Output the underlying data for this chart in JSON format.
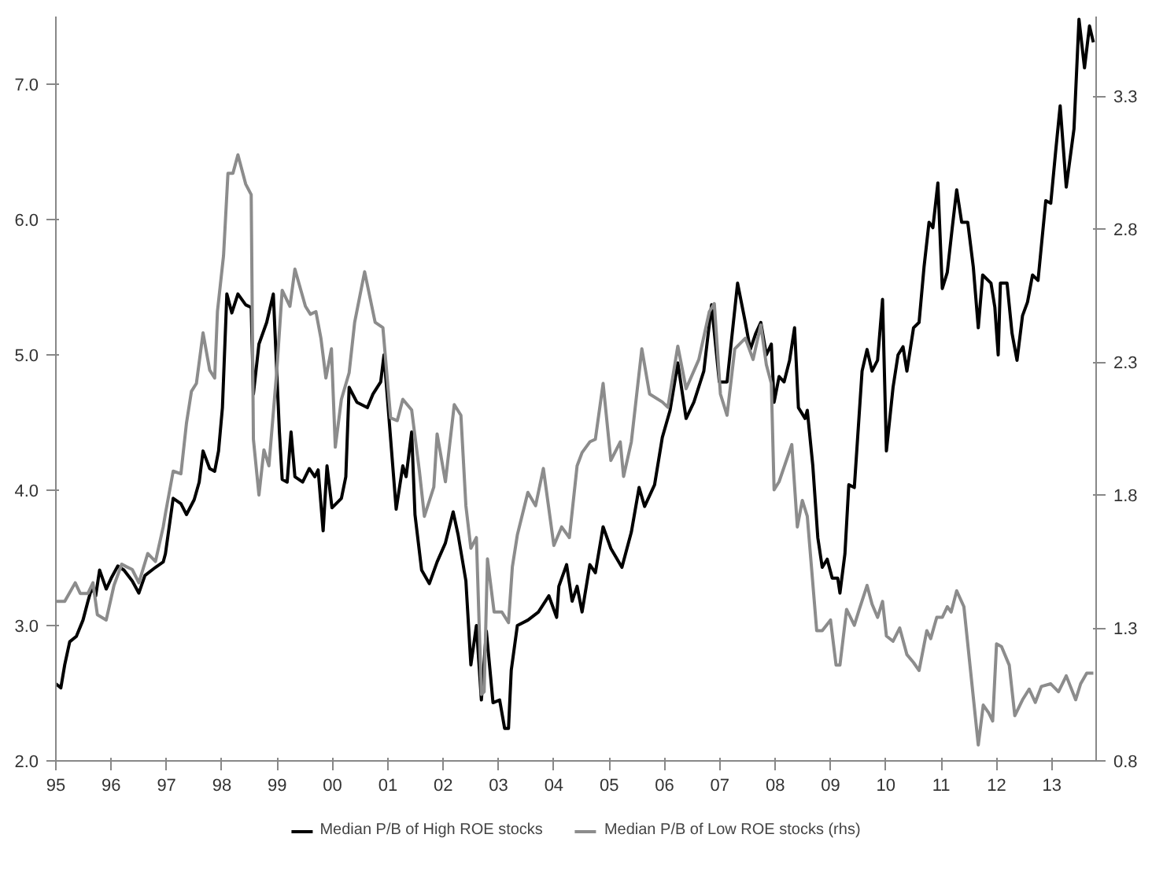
{
  "chart_data": {
    "type": "line",
    "xlim": [
      1995,
      2013.8
    ],
    "xticks": [
      {
        "value": 1995,
        "label": "95"
      },
      {
        "value": 1996,
        "label": "96"
      },
      {
        "value": 1997,
        "label": "97"
      },
      {
        "value": 1998,
        "label": "98"
      },
      {
        "value": 1999,
        "label": "99"
      },
      {
        "value": 2000,
        "label": "00"
      },
      {
        "value": 2001,
        "label": "01"
      },
      {
        "value": 2002,
        "label": "02"
      },
      {
        "value": 2003,
        "label": "03"
      },
      {
        "value": 2004,
        "label": "04"
      },
      {
        "value": 2005,
        "label": "05"
      },
      {
        "value": 2006,
        "label": "06"
      },
      {
        "value": 2007,
        "label": "07"
      },
      {
        "value": 2008,
        "label": "08"
      },
      {
        "value": 2009,
        "label": "09"
      },
      {
        "value": 2010,
        "label": "10"
      },
      {
        "value": 2011,
        "label": "11"
      },
      {
        "value": 2012,
        "label": "12"
      },
      {
        "value": 2013,
        "label": "13"
      }
    ],
    "ylim": [
      2,
      7.5
    ],
    "yticks": [
      {
        "value": 2,
        "label": "2.0"
      },
      {
        "value": 3,
        "label": "3.0"
      },
      {
        "value": 4,
        "label": "4.0"
      },
      {
        "value": 5,
        "label": "5.0"
      },
      {
        "value": 6,
        "label": "6.0"
      },
      {
        "value": 7,
        "label": "7.0"
      }
    ],
    "y2lim": [
      0.8,
      3.6
    ],
    "y2ticks": [
      0.8,
      1.3,
      1.8,
      2.3,
      2.8,
      3.3
    ],
    "grid": false,
    "legend": "bottom",
    "line_style": "solid",
    "marker": "none",
    "series": [
      {
        "name": "Median P/B of High ROE stocks",
        "color": "#000000",
        "axis": "y",
        "x": [
          1995.0,
          1995.09,
          1995.16,
          1995.25,
          1995.37,
          1995.49,
          1995.58,
          1995.65,
          1995.72,
          1995.79,
          1995.91,
          1996.0,
          1996.12,
          1996.23,
          1996.38,
          1996.5,
          1996.61,
          1996.8,
          1996.94,
          1996.98,
          1997.12,
          1997.26,
          1997.36,
          1997.5,
          1997.59,
          1997.66,
          1997.78,
          1997.87,
          1997.94,
          1998.01,
          1998.09,
          1998.18,
          1998.29,
          1998.43,
          1998.53,
          1998.57,
          1998.67,
          1998.81,
          1998.93,
          1999.04,
          1999.09,
          1999.18,
          1999.25,
          1999.32,
          1999.46,
          1999.58,
          1999.68,
          1999.74,
          1999.83,
          1999.9,
          1999.99,
          2000.16,
          2000.24,
          2000.3,
          2000.44,
          2000.63,
          2000.73,
          2000.87,
          2000.93,
          2001.15,
          2001.27,
          2001.33,
          2001.43,
          2001.49,
          2001.61,
          2001.75,
          2001.89,
          2002.04,
          2002.18,
          2002.27,
          2002.41,
          2002.5,
          2002.6,
          2002.69,
          2002.78,
          2002.9,
          2003.02,
          2003.11,
          2003.18,
          2003.23,
          2003.34,
          2003.53,
          2003.72,
          2003.91,
          2004.05,
          2004.09,
          2004.23,
          2004.33,
          2004.42,
          2004.51,
          2004.65,
          2004.75,
          2004.89,
          2005.03,
          2005.23,
          2005.4,
          2005.54,
          2005.64,
          2005.73,
          2005.82,
          2005.96,
          2006.1,
          2006.24,
          2006.39,
          2006.53,
          2006.71,
          2006.85,
          2006.99,
          2007.13,
          2007.32,
          2007.46,
          2007.55,
          2007.65,
          2007.74,
          2007.84,
          2007.93,
          2007.98,
          2008.07,
          2008.16,
          2008.26,
          2008.35,
          2008.42,
          2008.54,
          2008.58,
          2008.68,
          2008.77,
          2008.85,
          2008.94,
          2009.03,
          2009.13,
          2009.17,
          2009.26,
          2009.33,
          2009.43,
          2009.57,
          2009.66,
          2009.75,
          2009.85,
          2009.94,
          2010.01,
          2010.13,
          2010.22,
          2010.31,
          2010.38,
          2010.5,
          2010.6,
          2010.69,
          2010.78,
          2010.85,
          2010.94,
          2011.02,
          2011.11,
          2011.2,
          2011.28,
          2011.37,
          2011.48,
          2011.58,
          2011.67,
          2011.75,
          2011.9,
          2011.97,
          2012.03,
          2012.07,
          2012.19,
          2012.28,
          2012.37,
          2012.47,
          2012.56,
          2012.65,
          2012.75,
          2012.89,
          2012.98,
          2013.07,
          2013.15,
          2013.26,
          2013.4,
          2013.49,
          2013.59,
          2013.68,
          2013.75
        ],
        "values": [
          2.57,
          2.54,
          2.71,
          2.88,
          2.92,
          3.04,
          3.18,
          3.28,
          3.22,
          3.41,
          3.27,
          3.35,
          3.44,
          3.41,
          3.33,
          3.24,
          3.37,
          3.43,
          3.47,
          3.53,
          3.94,
          3.9,
          3.82,
          3.93,
          4.06,
          4.29,
          4.16,
          4.14,
          4.29,
          4.61,
          5.45,
          5.31,
          5.45,
          5.37,
          5.35,
          4.71,
          5.08,
          5.24,
          5.45,
          4.43,
          4.08,
          4.06,
          4.43,
          4.1,
          4.06,
          4.16,
          4.1,
          4.15,
          3.7,
          4.18,
          3.87,
          3.94,
          4.1,
          4.76,
          4.65,
          4.61,
          4.71,
          4.8,
          5.0,
          3.86,
          4.18,
          4.1,
          4.43,
          3.82,
          3.41,
          3.31,
          3.47,
          3.61,
          3.84,
          3.67,
          3.33,
          2.71,
          3.0,
          2.45,
          2.96,
          2.43,
          2.45,
          2.24,
          2.24,
          2.67,
          3.0,
          3.04,
          3.1,
          3.22,
          3.06,
          3.29,
          3.45,
          3.18,
          3.29,
          3.1,
          3.45,
          3.39,
          3.73,
          3.57,
          3.43,
          3.69,
          4.02,
          3.88,
          3.96,
          4.04,
          4.39,
          4.59,
          4.94,
          4.53,
          4.65,
          4.88,
          5.37,
          4.8,
          4.8,
          5.53,
          5.24,
          5.04,
          5.16,
          5.24,
          5.0,
          5.08,
          4.65,
          4.84,
          4.8,
          4.96,
          5.2,
          4.61,
          4.53,
          4.59,
          4.18,
          3.65,
          3.43,
          3.49,
          3.35,
          3.35,
          3.24,
          3.53,
          4.04,
          4.02,
          4.88,
          5.04,
          4.88,
          4.96,
          5.41,
          4.29,
          4.76,
          5.0,
          5.06,
          4.88,
          5.2,
          5.24,
          5.65,
          5.98,
          5.94,
          6.27,
          5.49,
          5.61,
          5.94,
          6.22,
          5.98,
          5.98,
          5.65,
          5.2,
          5.59,
          5.53,
          5.35,
          5.0,
          5.53,
          5.53,
          5.16,
          4.96,
          5.29,
          5.39,
          5.59,
          5.55,
          6.14,
          6.12,
          6.51,
          6.84,
          6.24,
          6.67,
          7.48,
          7.12,
          7.43,
          7.31
        ]
      },
      {
        "name": "Median P/B of Low ROE stocks (rhs)",
        "color": "#8c8c8c",
        "axis": "y2",
        "x": [
          1995.0,
          1995.16,
          1995.35,
          1995.44,
          1995.58,
          1995.67,
          1995.75,
          1995.91,
          1996.05,
          1996.19,
          1996.28,
          1996.38,
          1996.5,
          1996.66,
          1996.8,
          1996.94,
          1996.98,
          1997.12,
          1997.26,
          1997.36,
          1997.45,
          1997.54,
          1997.66,
          1997.78,
          1997.87,
          1997.92,
          1998.03,
          1998.11,
          1998.2,
          1998.29,
          1998.43,
          1998.53,
          1998.57,
          1998.67,
          1998.76,
          1998.85,
          1998.99,
          1999.09,
          1999.23,
          1999.32,
          1999.51,
          1999.6,
          1999.7,
          1999.79,
          1999.88,
          1999.98,
          2000.05,
          2000.16,
          2000.3,
          2000.4,
          2000.58,
          2000.77,
          2000.91,
          2001.05,
          2001.17,
          2001.27,
          2001.43,
          2001.57,
          2001.66,
          2001.83,
          2001.89,
          2002.04,
          2002.2,
          2002.32,
          2002.41,
          2002.5,
          2002.6,
          2002.69,
          2002.74,
          2002.8,
          2002.92,
          2003.06,
          2003.18,
          2003.25,
          2003.34,
          2003.53,
          2003.67,
          2003.81,
          2004.0,
          2004.14,
          2004.28,
          2004.42,
          2004.51,
          2004.65,
          2004.75,
          2004.89,
          2005.03,
          2005.2,
          2005.26,
          2005.4,
          2005.59,
          2005.73,
          2005.96,
          2006.06,
          2006.24,
          2006.39,
          2006.62,
          2006.81,
          2006.9,
          2007.01,
          2007.13,
          2007.27,
          2007.46,
          2007.6,
          2007.74,
          2007.84,
          2007.93,
          2007.98,
          2008.07,
          2008.3,
          2008.4,
          2008.49,
          2008.58,
          2008.75,
          2008.85,
          2009.0,
          2009.1,
          2009.17,
          2009.29,
          2009.43,
          2009.52,
          2009.66,
          2009.75,
          2009.85,
          2009.94,
          2010.01,
          2010.13,
          2010.25,
          2010.38,
          2010.5,
          2010.6,
          2010.74,
          2010.81,
          2010.92,
          2011.02,
          2011.11,
          2011.18,
          2011.28,
          2011.41,
          2011.67,
          2011.76,
          2011.86,
          2011.93,
          2012.0,
          2012.09,
          2012.23,
          2012.33,
          2012.47,
          2012.59,
          2012.7,
          2012.81,
          2012.98,
          2013.12,
          2013.26,
          2013.43,
          2013.52,
          2013.63,
          2013.75
        ],
        "values": [
          1.4,
          1.4,
          1.47,
          1.43,
          1.43,
          1.47,
          1.35,
          1.33,
          1.46,
          1.54,
          1.53,
          1.52,
          1.47,
          1.58,
          1.55,
          1.68,
          1.73,
          1.89,
          1.88,
          2.07,
          2.19,
          2.22,
          2.41,
          2.27,
          2.24,
          2.49,
          2.7,
          3.01,
          3.01,
          3.08,
          2.97,
          2.93,
          2.01,
          1.8,
          1.97,
          1.91,
          2.26,
          2.57,
          2.51,
          2.65,
          2.51,
          2.48,
          2.49,
          2.39,
          2.24,
          2.35,
          1.98,
          2.16,
          2.26,
          2.45,
          2.64,
          2.45,
          2.43,
          2.09,
          2.08,
          2.16,
          2.12,
          1.89,
          1.72,
          1.83,
          2.03,
          1.85,
          2.14,
          2.1,
          1.76,
          1.6,
          1.64,
          1.05,
          1.06,
          1.56,
          1.36,
          1.36,
          1.32,
          1.53,
          1.65,
          1.81,
          1.76,
          1.9,
          1.61,
          1.68,
          1.64,
          1.91,
          1.96,
          2.0,
          2.01,
          2.22,
          1.93,
          2.0,
          1.87,
          2.0,
          2.35,
          2.18,
          2.15,
          2.13,
          2.36,
          2.2,
          2.31,
          2.49,
          2.52,
          2.18,
          2.1,
          2.35,
          2.39,
          2.31,
          2.44,
          2.29,
          2.22,
          1.82,
          1.85,
          1.99,
          1.68,
          1.78,
          1.72,
          1.29,
          1.29,
          1.33,
          1.16,
          1.16,
          1.37,
          1.31,
          1.37,
          1.46,
          1.39,
          1.34,
          1.4,
          1.27,
          1.25,
          1.3,
          1.2,
          1.17,
          1.14,
          1.29,
          1.26,
          1.34,
          1.34,
          1.38,
          1.36,
          1.44,
          1.38,
          0.86,
          1.01,
          0.98,
          0.95,
          1.24,
          1.23,
          1.16,
          0.97,
          1.03,
          1.07,
          1.02,
          1.08,
          1.09,
          1.06,
          1.12,
          1.03,
          1.09,
          1.13,
          1.13
        ]
      }
    ]
  }
}
